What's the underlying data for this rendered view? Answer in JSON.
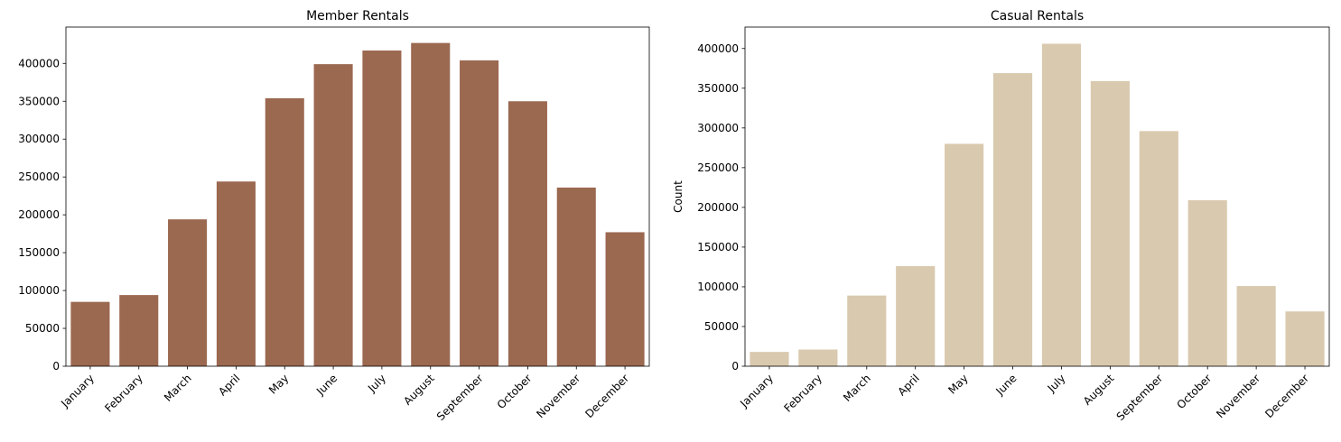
{
  "chart_data": [
    {
      "type": "bar",
      "title": "Member Rentals",
      "xlabel": "",
      "ylabel": "",
      "categories": [
        "January",
        "February",
        "March",
        "April",
        "May",
        "June",
        "July",
        "August",
        "September",
        "October",
        "November",
        "December"
      ],
      "values": [
        85000,
        94000,
        194000,
        244000,
        354000,
        399000,
        417000,
        427000,
        404000,
        350000,
        236000,
        177000
      ],
      "ylim": [
        0,
        448000
      ],
      "yticks": [
        0,
        50000,
        100000,
        150000,
        200000,
        250000,
        300000,
        350000,
        400000
      ],
      "color": "#9b6850",
      "grid": false
    },
    {
      "type": "bar",
      "title": "Casual Rentals",
      "xlabel": "",
      "ylabel": "Count",
      "categories": [
        "January",
        "February",
        "March",
        "April",
        "May",
        "June",
        "July",
        "August",
        "September",
        "October",
        "November",
        "December"
      ],
      "values": [
        18000,
        21000,
        89000,
        126000,
        280000,
        369000,
        406000,
        359000,
        296000,
        209000,
        101000,
        69000
      ],
      "ylim": [
        0,
        427000
      ],
      "yticks": [
        0,
        50000,
        100000,
        150000,
        200000,
        250000,
        300000,
        350000,
        400000
      ],
      "color": "#d9c9ae",
      "grid": false
    }
  ]
}
